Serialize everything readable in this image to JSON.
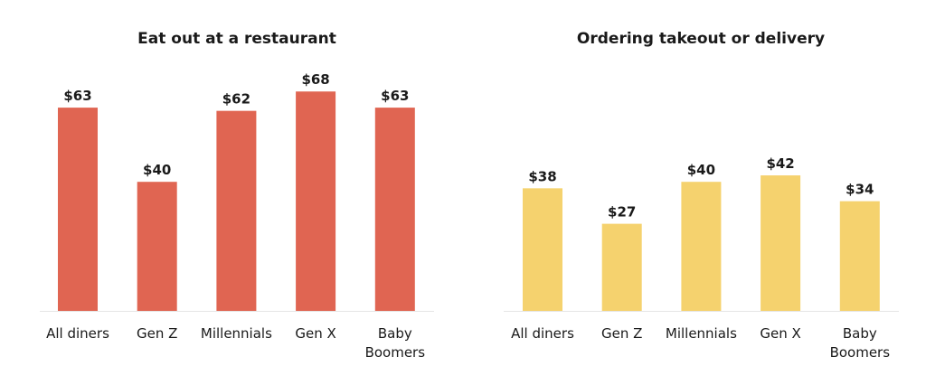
{
  "chart_data": [
    {
      "type": "bar",
      "title": "Eat out at a restaurant",
      "categories": [
        "All diners",
        "Gen Z",
        "Millennials",
        "Gen X",
        "Baby Boomers"
      ],
      "values": [
        63,
        40,
        62,
        68,
        63
      ],
      "data_labels": [
        "$63",
        "$40",
        "$62",
        "$68",
        "$63"
      ],
      "color": "#e06552",
      "xlabel": "",
      "ylabel": "",
      "ylim": [
        0,
        70
      ],
      "grid": false
    },
    {
      "type": "bar",
      "title": "Ordering takeout or delivery",
      "categories": [
        "All diners",
        "Gen Z",
        "Millennials",
        "Gen X",
        "Baby Boomers"
      ],
      "values": [
        38,
        27,
        40,
        42,
        34
      ],
      "data_labels": [
        "$38",
        "$27",
        "$40",
        "$42",
        "$34"
      ],
      "color": "#f5d26e",
      "xlabel": "",
      "ylabel": "",
      "ylim": [
        0,
        70
      ],
      "grid": false
    }
  ]
}
